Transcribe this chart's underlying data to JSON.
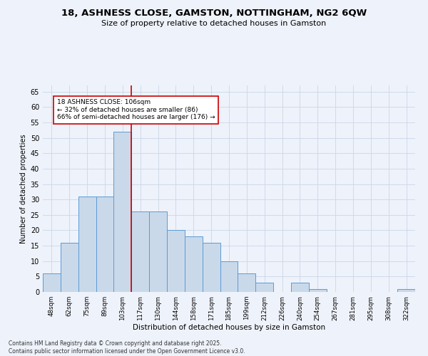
{
  "title": "18, ASHNESS CLOSE, GAMSTON, NOTTINGHAM, NG2 6QW",
  "subtitle": "Size of property relative to detached houses in Gamston",
  "xlabel": "Distribution of detached houses by size in Gamston",
  "ylabel": "Number of detached properties",
  "categories": [
    "48sqm",
    "62sqm",
    "75sqm",
    "89sqm",
    "103sqm",
    "117sqm",
    "130sqm",
    "144sqm",
    "158sqm",
    "171sqm",
    "185sqm",
    "199sqm",
    "212sqm",
    "226sqm",
    "240sqm",
    "254sqm",
    "267sqm",
    "281sqm",
    "295sqm",
    "308sqm",
    "322sqm"
  ],
  "values": [
    6,
    16,
    31,
    31,
    52,
    26,
    26,
    20,
    18,
    16,
    10,
    6,
    3,
    0,
    3,
    1,
    0,
    0,
    0,
    0,
    1
  ],
  "bar_color": "#c9d9ea",
  "bar_edge_color": "#5b9bd5",
  "property_line_x": 4.5,
  "annotation_text": "18 ASHNESS CLOSE: 106sqm\n← 32% of detached houses are smaller (86)\n66% of semi-detached houses are larger (176) →",
  "annotation_box_color": "#ffffff",
  "annotation_box_edge": "#cc0000",
  "red_line_color": "#cc0000",
  "ylim": [
    0,
    67
  ],
  "yticks": [
    0,
    5,
    10,
    15,
    20,
    25,
    30,
    35,
    40,
    45,
    50,
    55,
    60,
    65
  ],
  "grid_color": "#ccd6e8",
  "footer": "Contains HM Land Registry data © Crown copyright and database right 2025.\nContains public sector information licensed under the Open Government Licence v3.0.",
  "bg_color": "#eef2fa"
}
